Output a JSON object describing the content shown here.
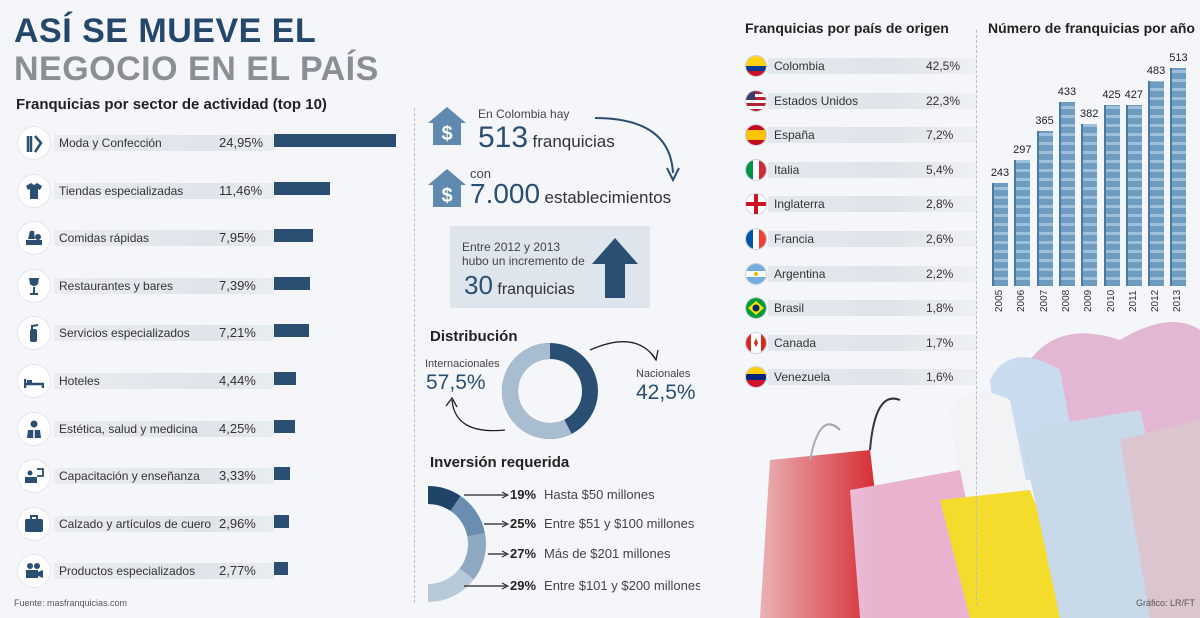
{
  "title": {
    "line1": "ASÍ SE MUEVE EL",
    "line2": "NEGOCIO EN EL PAÍS"
  },
  "sectors": {
    "heading": "Franquicias por sector de actividad (top 10)",
    "items": [
      {
        "label": "Moda y Confección",
        "value_text": "24,95%",
        "value": 24.95,
        "icon": "clothes-hanger-icon"
      },
      {
        "label": "Tiendas especializadas",
        "value_text": "11,46%",
        "value": 11.46,
        "icon": "tshirt-icon"
      },
      {
        "label": "Comidas rápidas",
        "value_text": "7,95%",
        "value": 7.95,
        "icon": "fast-food-icon"
      },
      {
        "label": "Restaurantes y bares",
        "value_text": "7,39%",
        "value": 7.39,
        "icon": "wine-glass-icon"
      },
      {
        "label": "Servicios especializados",
        "value_text": "7,21%",
        "value": 7.21,
        "icon": "extinguisher-icon"
      },
      {
        "label": "Hoteles",
        "value_text": "4,44%",
        "value": 4.44,
        "icon": "bed-icon"
      },
      {
        "label": "Estética, salud y medicina",
        "value_text": "4,25%",
        "value": 4.25,
        "icon": "doctor-icon"
      },
      {
        "label": "Capacitación y enseñanza",
        "value_text": "3,33%",
        "value": 3.33,
        "icon": "classroom-icon"
      },
      {
        "label": "Calzado y artículos de cuero",
        "value_text": "2,96%",
        "value": 2.96,
        "icon": "suitcase-icon"
      },
      {
        "label": "Productos especializados",
        "value_text": "2,77%",
        "value": 2.77,
        "icon": "camera-icon"
      }
    ]
  },
  "summary": {
    "franchises_pre": "En Colombia hay",
    "franchises_num": "513",
    "franchises_word": "franquicias",
    "est_pre": "con",
    "est_num": "7.000",
    "est_word": "establecimientos",
    "inc_line1": "Entre 2012 y 2013",
    "inc_line2": "hubo un incremento de",
    "inc_num": "30",
    "inc_word": "franquicias"
  },
  "distribution": {
    "heading": "Distribución",
    "intl_label": "Internacionales",
    "intl_value": "57,5%",
    "intl": 57.5,
    "nat_label": "Nacionales",
    "nat_value": "42,5%",
    "nat": 42.5
  },
  "investment": {
    "heading": "Inversión requerida",
    "items": [
      {
        "pct_text": "19%",
        "value": 19,
        "label": "Hasta $50 millones",
        "color": "#1f4468"
      },
      {
        "pct_text": "25%",
        "value": 25,
        "label": "Entre $51 y $100 millones",
        "color": "#6b8eb0"
      },
      {
        "pct_text": "27%",
        "value": 27,
        "label": "Más de $201 millones",
        "color": "#8fa9c2"
      },
      {
        "pct_text": "29%",
        "value": 29,
        "label": "Entre $101 y $200 millones",
        "color": "#b8c9d9"
      }
    ]
  },
  "countries": {
    "heading": "Franquicias por país de origen",
    "items": [
      {
        "name": "Colombia",
        "value_text": "42,5%",
        "value": 42.5,
        "icon": "colombia-flag-icon"
      },
      {
        "name": "Estados Unidos",
        "value_text": "22,3%",
        "value": 22.3,
        "icon": "usa-flag-icon"
      },
      {
        "name": "España",
        "value_text": "7,2%",
        "value": 7.2,
        "icon": "spain-flag-icon"
      },
      {
        "name": "Italia",
        "value_text": "5,4%",
        "value": 5.4,
        "icon": "italy-flag-icon"
      },
      {
        "name": "Inglaterra",
        "value_text": "2,8%",
        "value": 2.8,
        "icon": "england-flag-icon"
      },
      {
        "name": "Francia",
        "value_text": "2,6%",
        "value": 2.6,
        "icon": "france-flag-icon"
      },
      {
        "name": "Argentina",
        "value_text": "2,2%",
        "value": 2.2,
        "icon": "argentina-flag-icon"
      },
      {
        "name": "Brasil",
        "value_text": "1,8%",
        "value": 1.8,
        "icon": "brazil-flag-icon"
      },
      {
        "name": "Canada",
        "value_text": "1,7%",
        "value": 1.7,
        "icon": "canada-flag-icon"
      },
      {
        "name": "Venezuela",
        "value_text": "1,6%",
        "value": 1.6,
        "icon": "venezuela-flag-icon"
      }
    ]
  },
  "chart_data": {
    "type": "bar",
    "title": "Número de franquicias por año",
    "categories": [
      "2005",
      "2006",
      "2007",
      "2008",
      "2009",
      "2010",
      "2011",
      "2012",
      "2013"
    ],
    "values": [
      243,
      297,
      365,
      433,
      382,
      425,
      427,
      483,
      513
    ]
  },
  "footer": {
    "source": "Fuente:  masfranquicias.com",
    "credit": "Gráfico: LR/FT"
  },
  "colors": {
    "navy": "#24476b",
    "bar": "#2a4f72",
    "grey_title": "#8a8f96"
  }
}
